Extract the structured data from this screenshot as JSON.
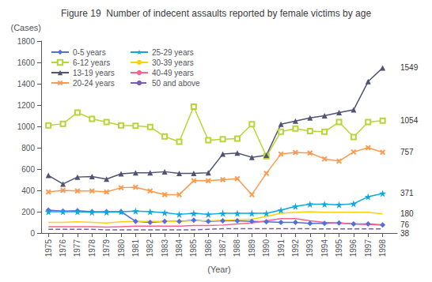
{
  "chart_data": {
    "type": "line",
    "title": "Figure 19  Number of indecent assaults reported by female victims by age",
    "x": [
      1975,
      1976,
      1977,
      1978,
      1979,
      1980,
      1981,
      1982,
      1983,
      1984,
      1985,
      1986,
      1987,
      1988,
      1989,
      1990,
      1991,
      1992,
      1993,
      1994,
      1995,
      1996,
      1997,
      1998
    ],
    "series": [
      {
        "name": "0-5 years",
        "marker": "diamond",
        "line_style": "solid",
        "values": [
          215,
          205,
          210,
          200,
          200,
          200,
          110,
          100,
          110,
          110,
          120,
          110,
          115,
          115,
          110,
          105,
          100,
          100,
          90,
          90,
          95,
          85,
          85,
          76
        ]
      },
      {
        "name": "6-12 years",
        "marker": "square",
        "line_style": "solid",
        "values": [
          1010,
          1025,
          1130,
          1070,
          1040,
          1010,
          1005,
          995,
          905,
          855,
          1185,
          870,
          880,
          885,
          1020,
          720,
          950,
          980,
          955,
          950,
          1040,
          900,
          1040,
          1054
        ]
      },
      {
        "name": "13-19 years",
        "marker": "triangle",
        "line_style": "solid",
        "values": [
          540,
          460,
          525,
          530,
          505,
          555,
          565,
          565,
          575,
          560,
          560,
          565,
          740,
          750,
          710,
          730,
          1020,
          1050,
          1080,
          1100,
          1130,
          1155,
          1420,
          1549
        ]
      },
      {
        "name": "20-24 years",
        "marker": "x",
        "line_style": "solid",
        "values": [
          385,
          400,
          395,
          395,
          385,
          425,
          430,
          395,
          360,
          360,
          490,
          490,
          500,
          510,
          360,
          560,
          740,
          755,
          750,
          695,
          675,
          760,
          800,
          757
        ]
      },
      {
        "name": "25-29 years",
        "marker": "star",
        "line_style": "solid",
        "values": [
          200,
          200,
          200,
          195,
          195,
          200,
          205,
          200,
          190,
          175,
          185,
          175,
          185,
          185,
          185,
          185,
          215,
          250,
          270,
          270,
          265,
          275,
          340,
          371
        ]
      },
      {
        "name": "30-39 years",
        "marker": "none",
        "line_style": "solid",
        "values": [
          100,
          100,
          105,
          100,
          95,
          105,
          110,
          110,
          110,
          110,
          115,
          115,
          120,
          125,
          130,
          155,
          185,
          195,
          200,
          195,
          195,
          195,
          195,
          180
        ]
      },
      {
        "name": "40-49 years",
        "marker": "none",
        "line_style": "solid",
        "values": [
          60,
          60,
          60,
          60,
          55,
          60,
          65,
          65,
          65,
          65,
          70,
          70,
          75,
          85,
          95,
          115,
          135,
          135,
          115,
          100,
          95,
          85,
          80,
          76
        ]
      },
      {
        "name": "50 and above",
        "marker": "none",
        "line_style": "dashed",
        "values": [
          35,
          35,
          35,
          35,
          30,
          30,
          30,
          30,
          30,
          30,
          30,
          35,
          40,
          40,
          40,
          40,
          40,
          40,
          40,
          38,
          38,
          38,
          38,
          38
        ]
      }
    ],
    "xlim": [
      1974.5,
      1999
    ],
    "xticks": [
      1975,
      1976,
      1977,
      1978,
      1979,
      1980,
      1981,
      1982,
      1983,
      1984,
      1985,
      1986,
      1987,
      1988,
      1989,
      1990,
      1991,
      1992,
      1993,
      1994,
      1995,
      1996,
      1997,
      1998
    ],
    "ylim": [
      0,
      1800
    ],
    "yticks": [
      0,
      200,
      400,
      600,
      800,
      1000,
      1200,
      1400,
      1600,
      1800
    ],
    "x_label": "(Year)",
    "y_label": "(Cases)",
    "annotations": [
      {
        "text": "1549",
        "y": 1549
      },
      {
        "text": "1054",
        "y": 1054
      },
      {
        "text": "757",
        "y": 757
      },
      {
        "text": "371",
        "y": 371
      },
      {
        "text": "180",
        "y": 180
      },
      {
        "text": "76",
        "y": 76
      },
      {
        "text": "38",
        "y": 38
      }
    ],
    "legend": "upper left",
    "grid": false
  }
}
